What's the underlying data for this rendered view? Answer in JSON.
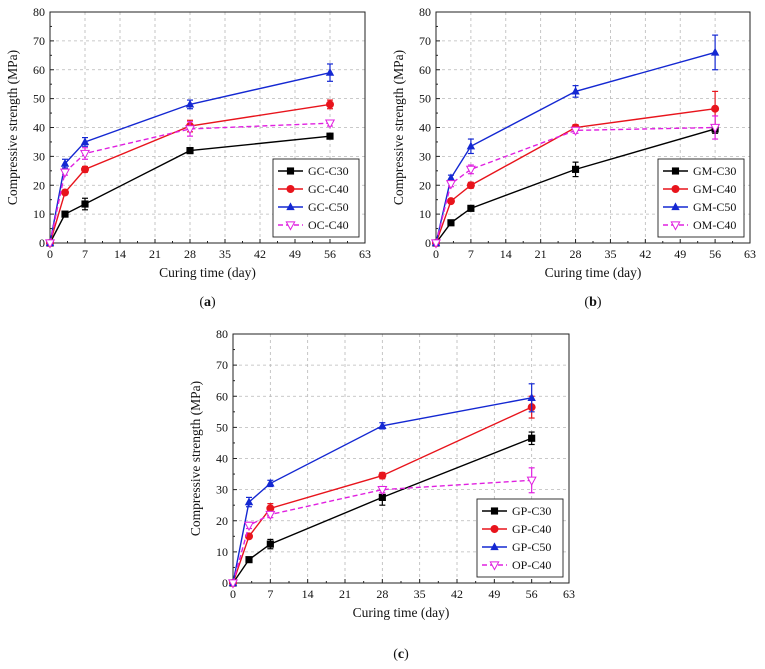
{
  "chart_data": [
    {
      "type": "line",
      "panel_label_prefix": "(",
      "panel_label": "a",
      "panel_label_suffix": ")",
      "xlabel": "Curing time (day)",
      "ylabel": "Compressive strength (MPa)",
      "xlim": [
        0,
        63
      ],
      "ylim": [
        0,
        80
      ],
      "xticks": [
        "0",
        "7",
        "14",
        "21",
        "28",
        "35",
        "42",
        "49",
        "56",
        "63"
      ],
      "yticks": [
        "0",
        "10",
        "20",
        "30",
        "40",
        "50",
        "60",
        "70",
        "80"
      ],
      "grid": true,
      "legend_position": "bottom-right",
      "series": [
        {
          "name": "GC-C30",
          "color": "#000000",
          "marker": "square",
          "dash": false,
          "x": [
            0,
            3,
            7,
            28,
            56
          ],
          "y": [
            0,
            10,
            13.5,
            32,
            37
          ],
          "err": [
            0,
            0.8,
            2,
            1,
            0.7
          ]
        },
        {
          "name": "GC-C40",
          "color": "#e8141c",
          "marker": "circle",
          "dash": false,
          "x": [
            0,
            3,
            7,
            28,
            56
          ],
          "y": [
            0,
            17.5,
            25.5,
            40.5,
            48
          ],
          "err": [
            0,
            0.8,
            1,
            2,
            1.5
          ]
        },
        {
          "name": "GC-C50",
          "color": "#1428d2",
          "marker": "triangle",
          "dash": false,
          "x": [
            0,
            3,
            7,
            28,
            56
          ],
          "y": [
            0,
            27.5,
            35,
            48,
            59
          ],
          "err": [
            0,
            1.5,
            1.5,
            1.5,
            3
          ]
        },
        {
          "name": "OC-C40",
          "color": "#e020e0",
          "marker": "triangle-down",
          "dash": true,
          "x": [
            0,
            3,
            7,
            28,
            56
          ],
          "y": [
            0,
            24.5,
            31,
            39.5,
            41.5
          ],
          "err": [
            0,
            1,
            2,
            2.5,
            1
          ]
        }
      ]
    },
    {
      "type": "line",
      "panel_label_prefix": "(",
      "panel_label": "b",
      "panel_label_suffix": ")",
      "xlabel": "Curing time (day)",
      "ylabel": "Compressive strength (MPa)",
      "xlim": [
        0,
        63
      ],
      "ylim": [
        0,
        80
      ],
      "xticks": [
        "0",
        "7",
        "14",
        "21",
        "28",
        "35",
        "42",
        "49",
        "56",
        "63"
      ],
      "yticks": [
        "0",
        "10",
        "20",
        "30",
        "40",
        "50",
        "60",
        "70",
        "80"
      ],
      "grid": true,
      "legend_position": "bottom-right",
      "series": [
        {
          "name": "GM-C30",
          "color": "#000000",
          "marker": "square",
          "dash": false,
          "x": [
            0,
            3,
            7,
            28,
            56
          ],
          "y": [
            0,
            7,
            12,
            25.5,
            39.5
          ],
          "err": [
            0,
            0.5,
            0.8,
            2.5,
            1.5
          ]
        },
        {
          "name": "GM-C40",
          "color": "#e8141c",
          "marker": "circle",
          "dash": false,
          "x": [
            0,
            3,
            7,
            28,
            56
          ],
          "y": [
            0,
            14.5,
            20,
            40,
            46.5
          ],
          "err": [
            0,
            0.5,
            1,
            1,
            6
          ]
        },
        {
          "name": "GM-C50",
          "color": "#1428d2",
          "marker": "triangle",
          "dash": false,
          "x": [
            0,
            3,
            7,
            28,
            56
          ],
          "y": [
            0,
            22.5,
            33.5,
            52.5,
            66
          ],
          "err": [
            0,
            1,
            2.5,
            2,
            6
          ]
        },
        {
          "name": "OM-C40",
          "color": "#e020e0",
          "marker": "triangle-down",
          "dash": true,
          "x": [
            0,
            3,
            7,
            28,
            56
          ],
          "y": [
            0,
            20.5,
            25.5,
            39,
            40
          ],
          "err": [
            0,
            1,
            1.5,
            1,
            4
          ]
        }
      ]
    },
    {
      "type": "line",
      "panel_label_prefix": "(",
      "panel_label": "c",
      "panel_label_suffix": ")",
      "xlabel": "Curing time (day)",
      "ylabel": "Compressive strength (MPa)",
      "xlim": [
        0,
        63
      ],
      "ylim": [
        0,
        80
      ],
      "xticks": [
        "0",
        "7",
        "14",
        "21",
        "28",
        "35",
        "42",
        "49",
        "56",
        "63"
      ],
      "yticks": [
        "0",
        "10",
        "20",
        "30",
        "40",
        "50",
        "60",
        "70",
        "80"
      ],
      "grid": true,
      "legend_position": "bottom-right",
      "series": [
        {
          "name": "GP-C30",
          "color": "#000000",
          "marker": "square",
          "dash": false,
          "x": [
            0,
            3,
            7,
            28,
            56
          ],
          "y": [
            0,
            7.5,
            12.5,
            27.5,
            46.5
          ],
          "err": [
            0,
            0.5,
            1.5,
            2.5,
            2
          ]
        },
        {
          "name": "GP-C40",
          "color": "#e8141c",
          "marker": "circle",
          "dash": false,
          "x": [
            0,
            3,
            7,
            28,
            56
          ],
          "y": [
            0,
            15,
            24,
            34.5,
            56.5
          ],
          "err": [
            0,
            0.5,
            1.5,
            1,
            3.5
          ]
        },
        {
          "name": "GP-C50",
          "color": "#1428d2",
          "marker": "triangle",
          "dash": false,
          "x": [
            0,
            3,
            7,
            28,
            56
          ],
          "y": [
            0,
            26,
            32,
            50.5,
            59.5
          ],
          "err": [
            0,
            1.5,
            1,
            1,
            4.5
          ]
        },
        {
          "name": "OP-C40",
          "color": "#e020e0",
          "marker": "triangle-down",
          "dash": true,
          "x": [
            0,
            3,
            7,
            28,
            56
          ],
          "y": [
            0,
            18.5,
            22,
            30,
            33
          ],
          "err": [
            0,
            1,
            1,
            1,
            4
          ]
        }
      ]
    }
  ]
}
